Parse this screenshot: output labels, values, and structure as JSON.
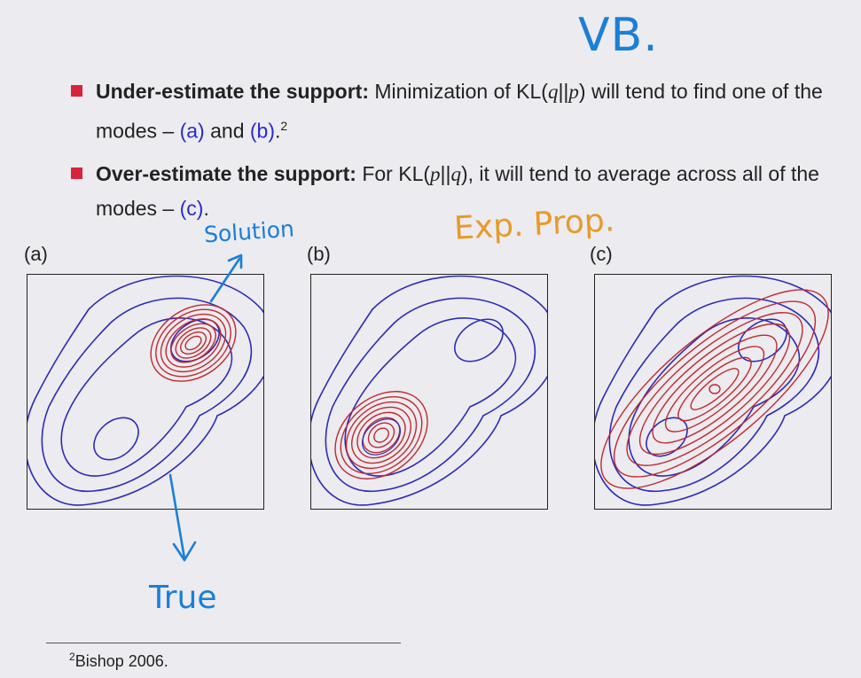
{
  "annotations": {
    "vb": "VB.",
    "solution": "Solution",
    "exp_prop": "Exp. Prop.",
    "true": "True"
  },
  "bullets": [
    {
      "bold": "Under-estimate the support:",
      "text_a": " Minimization of ",
      "kl_func": "KL(",
      "kl_arg1": "q",
      "kl_sep": "||",
      "kl_arg2": "p",
      "kl_close": ")",
      "text_b": " will tend to find one of the modes – ",
      "ref1": "(a)",
      "text_c": " and ",
      "ref2": "(b)",
      "text_d": ".",
      "footmark": "2"
    },
    {
      "bold": "Over-estimate the support:",
      "text_a": " For ",
      "kl_func": "KL(",
      "kl_arg1": "p",
      "kl_sep": "||",
      "kl_arg2": "q",
      "kl_close": ")",
      "text_b": ", it will tend to average across all of the modes – ",
      "ref1": "(c)",
      "text_c": "."
    }
  ],
  "panels": {
    "a_label": "(a)",
    "b_label": "(b)",
    "c_label": "(c)"
  },
  "colors": {
    "true_contour": "#2b2bb8",
    "approx_contour": "#c0282e",
    "annotation_blue": "#1a7fd6",
    "annotation_orange": "#e89a26"
  },
  "footnote": {
    "mark": "2",
    "text": "Bishop 2006."
  }
}
